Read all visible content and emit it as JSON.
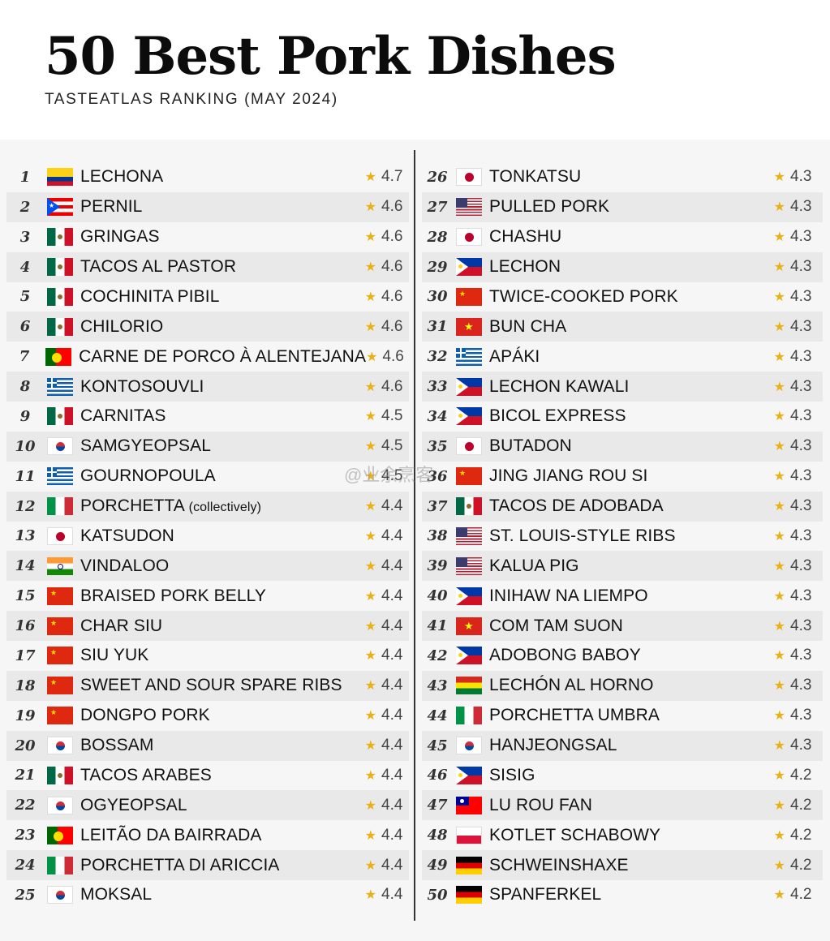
{
  "title": "50 Best Pork Dishes",
  "subtitle": "TASTEATLAS RANKING (MAY 2024)",
  "watermark": "@业余烹客",
  "items": [
    {
      "rank": "1",
      "name": "LECHONA",
      "note": "",
      "score": "4.7",
      "flag": "colombia"
    },
    {
      "rank": "2",
      "name": "PERNIL",
      "note": "",
      "score": "4.6",
      "flag": "puerto-rico"
    },
    {
      "rank": "3",
      "name": "GRINGAS",
      "note": "",
      "score": "4.6",
      "flag": "mexico"
    },
    {
      "rank": "4",
      "name": "TACOS AL PASTOR",
      "note": "",
      "score": "4.6",
      "flag": "mexico"
    },
    {
      "rank": "5",
      "name": "COCHINITA PIBIL",
      "note": "",
      "score": "4.6",
      "flag": "mexico"
    },
    {
      "rank": "6",
      "name": "CHILORIO",
      "note": "",
      "score": "4.6",
      "flag": "mexico"
    },
    {
      "rank": "7",
      "name": "CARNE DE PORCO À ALENTEJANA",
      "note": "",
      "score": "4.6",
      "flag": "portugal"
    },
    {
      "rank": "8",
      "name": "KONTOSOUVLI",
      "note": "",
      "score": "4.6",
      "flag": "greece"
    },
    {
      "rank": "9",
      "name": "CARNITAS",
      "note": "",
      "score": "4.5",
      "flag": "mexico"
    },
    {
      "rank": "10",
      "name": "SAMGYEOPSAL",
      "note": "",
      "score": "4.5",
      "flag": "south-korea"
    },
    {
      "rank": "11",
      "name": "GOURNOPOULA",
      "note": "",
      "score": "4.5",
      "flag": "greece"
    },
    {
      "rank": "12",
      "name": "PORCHETTA",
      "note": "(collectively)",
      "score": "4.4",
      "flag": "italy"
    },
    {
      "rank": "13",
      "name": "KATSUDON",
      "note": "",
      "score": "4.4",
      "flag": "japan"
    },
    {
      "rank": "14",
      "name": "VINDALOO",
      "note": "",
      "score": "4.4",
      "flag": "india"
    },
    {
      "rank": "15",
      "name": "BRAISED PORK BELLY",
      "note": "",
      "score": "4.4",
      "flag": "china"
    },
    {
      "rank": "16",
      "name": "CHAR SIU",
      "note": "",
      "score": "4.4",
      "flag": "china"
    },
    {
      "rank": "17",
      "name": "SIU YUK",
      "note": "",
      "score": "4.4",
      "flag": "china"
    },
    {
      "rank": "18",
      "name": "SWEET AND SOUR SPARE RIBS",
      "note": "",
      "score": "4.4",
      "flag": "china"
    },
    {
      "rank": "19",
      "name": "DONGPO PORK",
      "note": "",
      "score": "4.4",
      "flag": "china"
    },
    {
      "rank": "20",
      "name": "BOSSAM",
      "note": "",
      "score": "4.4",
      "flag": "south-korea"
    },
    {
      "rank": "21",
      "name": "TACOS ARABES",
      "note": "",
      "score": "4.4",
      "flag": "mexico"
    },
    {
      "rank": "22",
      "name": "OGYEOPSAL",
      "note": "",
      "score": "4.4",
      "flag": "south-korea"
    },
    {
      "rank": "23",
      "name": "LEITÃO DA BAIRRADA",
      "note": "",
      "score": "4.4",
      "flag": "portugal"
    },
    {
      "rank": "24",
      "name": "PORCHETTA DI ARICCIA",
      "note": "",
      "score": "4.4",
      "flag": "italy"
    },
    {
      "rank": "25",
      "name": "MOKSAL",
      "note": "",
      "score": "4.4",
      "flag": "south-korea"
    },
    {
      "rank": "26",
      "name": "TONKATSU",
      "note": "",
      "score": "4.3",
      "flag": "japan"
    },
    {
      "rank": "27",
      "name": "PULLED PORK",
      "note": "",
      "score": "4.3",
      "flag": "usa"
    },
    {
      "rank": "28",
      "name": "CHASHU",
      "note": "",
      "score": "4.3",
      "flag": "japan"
    },
    {
      "rank": "29",
      "name": "LECHON",
      "note": "",
      "score": "4.3",
      "flag": "philippines"
    },
    {
      "rank": "30",
      "name": "TWICE-COOKED PORK",
      "note": "",
      "score": "4.3",
      "flag": "china"
    },
    {
      "rank": "31",
      "name": "BUN CHA",
      "note": "",
      "score": "4.3",
      "flag": "vietnam"
    },
    {
      "rank": "32",
      "name": "APÁKI",
      "note": "",
      "score": "4.3",
      "flag": "greece"
    },
    {
      "rank": "33",
      "name": "LECHON KAWALI",
      "note": "",
      "score": "4.3",
      "flag": "philippines"
    },
    {
      "rank": "34",
      "name": "BICOL EXPRESS",
      "note": "",
      "score": "4.3",
      "flag": "philippines"
    },
    {
      "rank": "35",
      "name": "BUTADON",
      "note": "",
      "score": "4.3",
      "flag": "japan"
    },
    {
      "rank": "36",
      "name": "JING JIANG ROU SI",
      "note": "",
      "score": "4.3",
      "flag": "china"
    },
    {
      "rank": "37",
      "name": "TACOS DE ADOBADA",
      "note": "",
      "score": "4.3",
      "flag": "mexico"
    },
    {
      "rank": "38",
      "name": "ST. LOUIS-STYLE RIBS",
      "note": "",
      "score": "4.3",
      "flag": "usa"
    },
    {
      "rank": "39",
      "name": "KALUA PIG",
      "note": "",
      "score": "4.3",
      "flag": "usa"
    },
    {
      "rank": "40",
      "name": "INIHAW NA LIEMPO",
      "note": "",
      "score": "4.3",
      "flag": "philippines"
    },
    {
      "rank": "41",
      "name": "COM TAM SUON",
      "note": "",
      "score": "4.3",
      "flag": "vietnam"
    },
    {
      "rank": "42",
      "name": "ADOBONG BABOY",
      "note": "",
      "score": "4.3",
      "flag": "philippines"
    },
    {
      "rank": "43",
      "name": "LECHÓN AL HORNO",
      "note": "",
      "score": "4.3",
      "flag": "bolivia"
    },
    {
      "rank": "44",
      "name": "PORCHETTA UMBRA",
      "note": "",
      "score": "4.3",
      "flag": "italy"
    },
    {
      "rank": "45",
      "name": "HANJEONGSAL",
      "note": "",
      "score": "4.3",
      "flag": "south-korea"
    },
    {
      "rank": "46",
      "name": "SISIG",
      "note": "",
      "score": "4.2",
      "flag": "philippines"
    },
    {
      "rank": "47",
      "name": "LU ROU FAN",
      "note": "",
      "score": "4.2",
      "flag": "taiwan"
    },
    {
      "rank": "48",
      "name": "KOTLET SCHABOWY",
      "note": "",
      "score": "4.2",
      "flag": "poland"
    },
    {
      "rank": "49",
      "name": "SCHWEINSHAXE",
      "note": "",
      "score": "4.2",
      "flag": "germany"
    },
    {
      "rank": "50",
      "name": "SPANFERKEL",
      "note": "",
      "score": "4.2",
      "flag": "germany"
    }
  ]
}
